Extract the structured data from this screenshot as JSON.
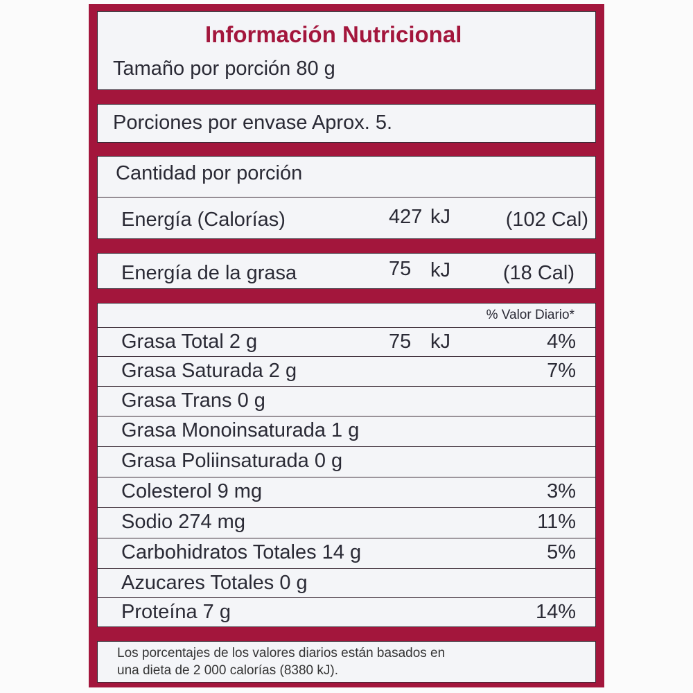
{
  "title": "Información Nutricional",
  "serving_size": "Tamaño por porción 80 g",
  "servings_per_container": "Porciones por envase  Aprox. 5.",
  "amount_per_serving": "Cantidad por porción",
  "energy": {
    "label": "Energía (Calorías)",
    "value": "427",
    "unit": "kJ",
    "cal": "(102 Cal)"
  },
  "fat_energy": {
    "label": "Energía de la grasa",
    "value": "75",
    "unit": "kJ",
    "cal": "(18 Cal)"
  },
  "dv_header": "% Valor Diario*",
  "nutrients": [
    {
      "label": "Grasa Total 2 g",
      "value": "75",
      "unit": "kJ",
      "pct": "4%"
    },
    {
      "label": "Grasa Saturada 2 g",
      "value": "",
      "unit": "",
      "pct": "7%"
    },
    {
      "label": "Grasa Trans 0 g",
      "value": "",
      "unit": "",
      "pct": ""
    },
    {
      "label": "Grasa Monoinsaturada 1 g",
      "value": "",
      "unit": "",
      "pct": ""
    },
    {
      "label": "Grasa Poliinsaturada 0 g",
      "value": "",
      "unit": "",
      "pct": ""
    },
    {
      "label": "Colesterol 9 mg",
      "value": "",
      "unit": "",
      "pct": "3%"
    },
    {
      "label": "Sodio 274 mg",
      "value": "",
      "unit": "",
      "pct": "11%"
    },
    {
      "label": "Carbohidratos Totales 14 g",
      "value": "",
      "unit": "",
      "pct": "5%"
    },
    {
      "label": "Azucares Totales 0 g",
      "value": "",
      "unit": "",
      "pct": ""
    },
    {
      "label": "Proteína 7 g",
      "value": "",
      "unit": "",
      "pct": "14%"
    }
  ],
  "footnote": [
    "Los porcentajes de los valores diarios están basados en",
    "una dieta de 2 000 calorías (8380 kJ)."
  ],
  "colors": {
    "accent": "#a3163c",
    "panel": "#f4f5f8",
    "text": "#2a2a35"
  }
}
